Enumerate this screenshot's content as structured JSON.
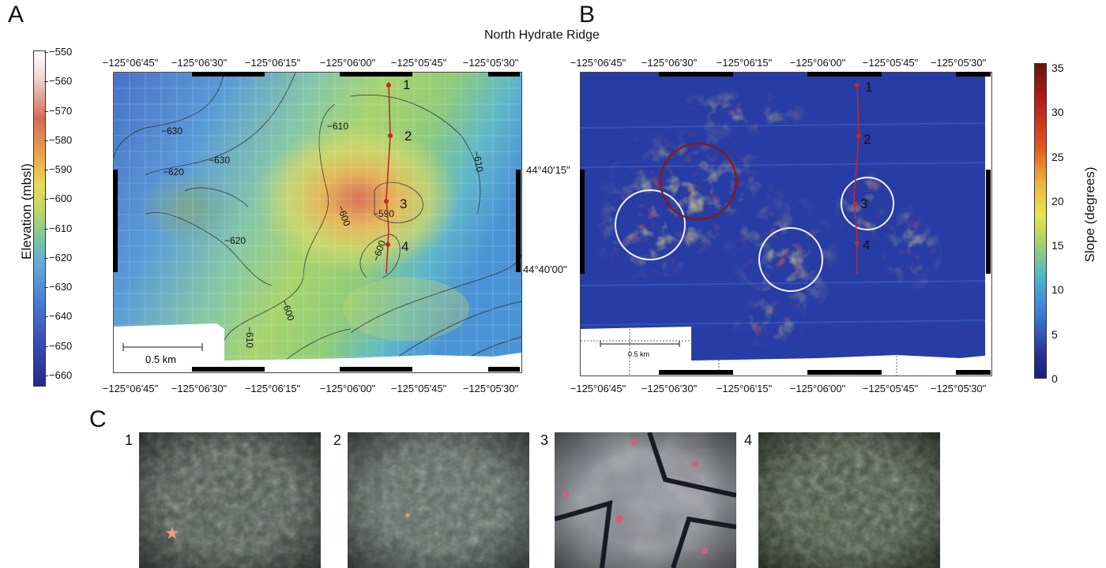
{
  "figure": {
    "title": "North Hydrate Ridge",
    "panels": {
      "a": "A",
      "b": "B",
      "c": "C"
    }
  },
  "panel_a": {
    "colorbar_label": "Elevation (mbsl)",
    "colorbar_ticks": [
      "−550",
      "−560",
      "−570",
      "−580",
      "−590",
      "−600",
      "−610",
      "−620",
      "−630",
      "−640",
      "−650",
      "−660"
    ],
    "lon_ticks": [
      "−125°06'45\"",
      "−125°06'30\"",
      "−125°06'15\"",
      "−125°06'00\"",
      "−125°05'45\"",
      "−125°05'30\""
    ],
    "lat_ticks": [
      "44°40'15\"",
      "44°40'00\""
    ],
    "contour_labels": [
      "−630",
      "−610",
      "−610",
      "−620",
      "−630",
      "−600",
      "−590",
      "−620",
      "−600",
      "−600",
      "−610"
    ],
    "track_points": [
      "1",
      "2",
      "3",
      "4"
    ],
    "scale_bar": "0.5 km"
  },
  "panel_b": {
    "colorbar_label": "Slope (degrees)",
    "colorbar_ticks": [
      "35",
      "30",
      "25",
      "20",
      "15",
      "10",
      "5",
      "0"
    ],
    "lon_ticks": [
      "−125°06'45\"",
      "−125°06'30\"",
      "−125°06'15\"",
      "−125°06'00\"",
      "−125°05'45\"",
      "−125°05'30\""
    ],
    "lon_ticks_bottom": [
      "−125°06'45\"",
      "−125°06'30\"",
      "−125°06'15\"",
      "−125°06'00\"",
      "−125°05'45\"",
      "−125°05'30\""
    ],
    "track_points": [
      "1",
      "2",
      "3",
      "4"
    ],
    "scale_bar": "0.5 km"
  },
  "panel_c": {
    "photos": [
      {
        "num": "1",
        "tone": "#4d5650"
      },
      {
        "num": "2",
        "tone": "#59655f"
      },
      {
        "num": "3",
        "tone": "#8a8d93"
      },
      {
        "num": "4",
        "tone": "#46533d"
      }
    ]
  },
  "colors": {
    "track": "#c0282a",
    "elev_deep": "#262a8c",
    "elev_shallow": "#f2f2f2",
    "slope_low": "#1e2a8a",
    "slope_high": "#7a1210"
  }
}
